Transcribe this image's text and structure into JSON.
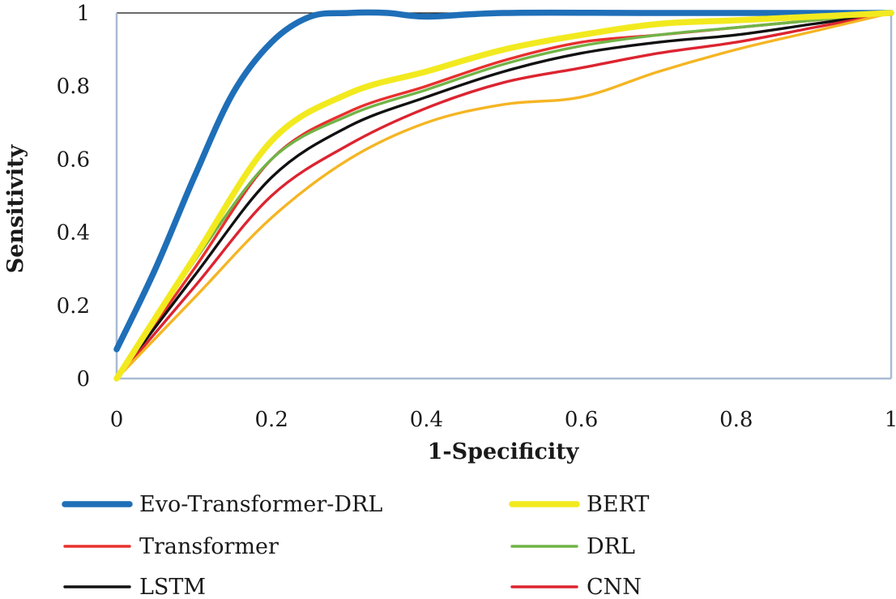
{
  "chart_data": {
    "type": "line",
    "title": "",
    "xlabel": "1-Specificity",
    "ylabel": "Sensitivity",
    "xlim": [
      0,
      1
    ],
    "ylim": [
      0,
      1
    ],
    "xticks": [
      "0",
      "0.2",
      "0.4",
      "0.6",
      "0.8",
      "1"
    ],
    "yticks": [
      "0",
      "0.2",
      "0.4",
      "0.6",
      "0.8",
      "1"
    ],
    "grid": false,
    "legend_position": "bottom",
    "series": [
      {
        "name": "Evo-Transformer-DRL",
        "color": "#1f6fb8",
        "line_width": "thick",
        "points": [
          [
            0,
            0.08
          ],
          [
            0.05,
            0.3
          ],
          [
            0.1,
            0.55
          ],
          [
            0.15,
            0.78
          ],
          [
            0.2,
            0.92
          ],
          [
            0.25,
            0.99
          ],
          [
            0.3,
            1.0
          ],
          [
            0.35,
            1.0
          ],
          [
            0.4,
            0.99
          ],
          [
            0.5,
            1.0
          ],
          [
            0.7,
            1.0
          ],
          [
            1,
            1.0
          ]
        ]
      },
      {
        "name": "BERT",
        "color": "#f2ea1f",
        "line_width": "thick",
        "points": [
          [
            0,
            0
          ],
          [
            0.1,
            0.33
          ],
          [
            0.2,
            0.65
          ],
          [
            0.3,
            0.78
          ],
          [
            0.4,
            0.84
          ],
          [
            0.5,
            0.9
          ],
          [
            0.6,
            0.94
          ],
          [
            0.7,
            0.97
          ],
          [
            0.8,
            0.98
          ],
          [
            0.9,
            0.99
          ],
          [
            1,
            1.0
          ]
        ]
      },
      {
        "name": "Transformer",
        "color": "#e8302e",
        "line_width": "medium",
        "points": [
          [
            0,
            0
          ],
          [
            0.1,
            0.3
          ],
          [
            0.2,
            0.6
          ],
          [
            0.3,
            0.73
          ],
          [
            0.4,
            0.8
          ],
          [
            0.5,
            0.87
          ],
          [
            0.6,
            0.92
          ],
          [
            0.7,
            0.94
          ],
          [
            0.8,
            0.96
          ],
          [
            0.9,
            0.98
          ],
          [
            1,
            1.0
          ]
        ]
      },
      {
        "name": "DRL",
        "color": "#71b447",
        "line_width": "medium",
        "points": [
          [
            0,
            0
          ],
          [
            0.1,
            0.32
          ],
          [
            0.2,
            0.6
          ],
          [
            0.3,
            0.72
          ],
          [
            0.4,
            0.79
          ],
          [
            0.5,
            0.86
          ],
          [
            0.6,
            0.91
          ],
          [
            0.7,
            0.94
          ],
          [
            0.8,
            0.96
          ],
          [
            0.9,
            0.98
          ],
          [
            1,
            1.0
          ]
        ]
      },
      {
        "name": "LSTM",
        "color": "#111111",
        "line_width": "medium",
        "points": [
          [
            0,
            0
          ],
          [
            0.1,
            0.28
          ],
          [
            0.2,
            0.55
          ],
          [
            0.3,
            0.69
          ],
          [
            0.4,
            0.77
          ],
          [
            0.5,
            0.84
          ],
          [
            0.6,
            0.89
          ],
          [
            0.7,
            0.92
          ],
          [
            0.8,
            0.94
          ],
          [
            0.9,
            0.97
          ],
          [
            1,
            1.0
          ]
        ]
      },
      {
        "name": "CNN",
        "color": "#dc2430",
        "line_width": "medium",
        "points": [
          [
            0,
            0
          ],
          [
            0.1,
            0.25
          ],
          [
            0.2,
            0.5
          ],
          [
            0.3,
            0.64
          ],
          [
            0.4,
            0.74
          ],
          [
            0.5,
            0.81
          ],
          [
            0.6,
            0.85
          ],
          [
            0.7,
            0.89
          ],
          [
            0.8,
            0.92
          ],
          [
            0.9,
            0.96
          ],
          [
            1,
            1.0
          ]
        ]
      },
      {
        "name": "",
        "color": "#f5b523",
        "line_width": "medium",
        "points": [
          [
            0,
            0
          ],
          [
            0.1,
            0.22
          ],
          [
            0.2,
            0.44
          ],
          [
            0.3,
            0.6
          ],
          [
            0.4,
            0.7
          ],
          [
            0.5,
            0.75
          ],
          [
            0.6,
            0.77
          ],
          [
            0.7,
            0.84
          ],
          [
            0.8,
            0.9
          ],
          [
            0.9,
            0.95
          ],
          [
            1,
            1.0
          ]
        ]
      }
    ]
  }
}
